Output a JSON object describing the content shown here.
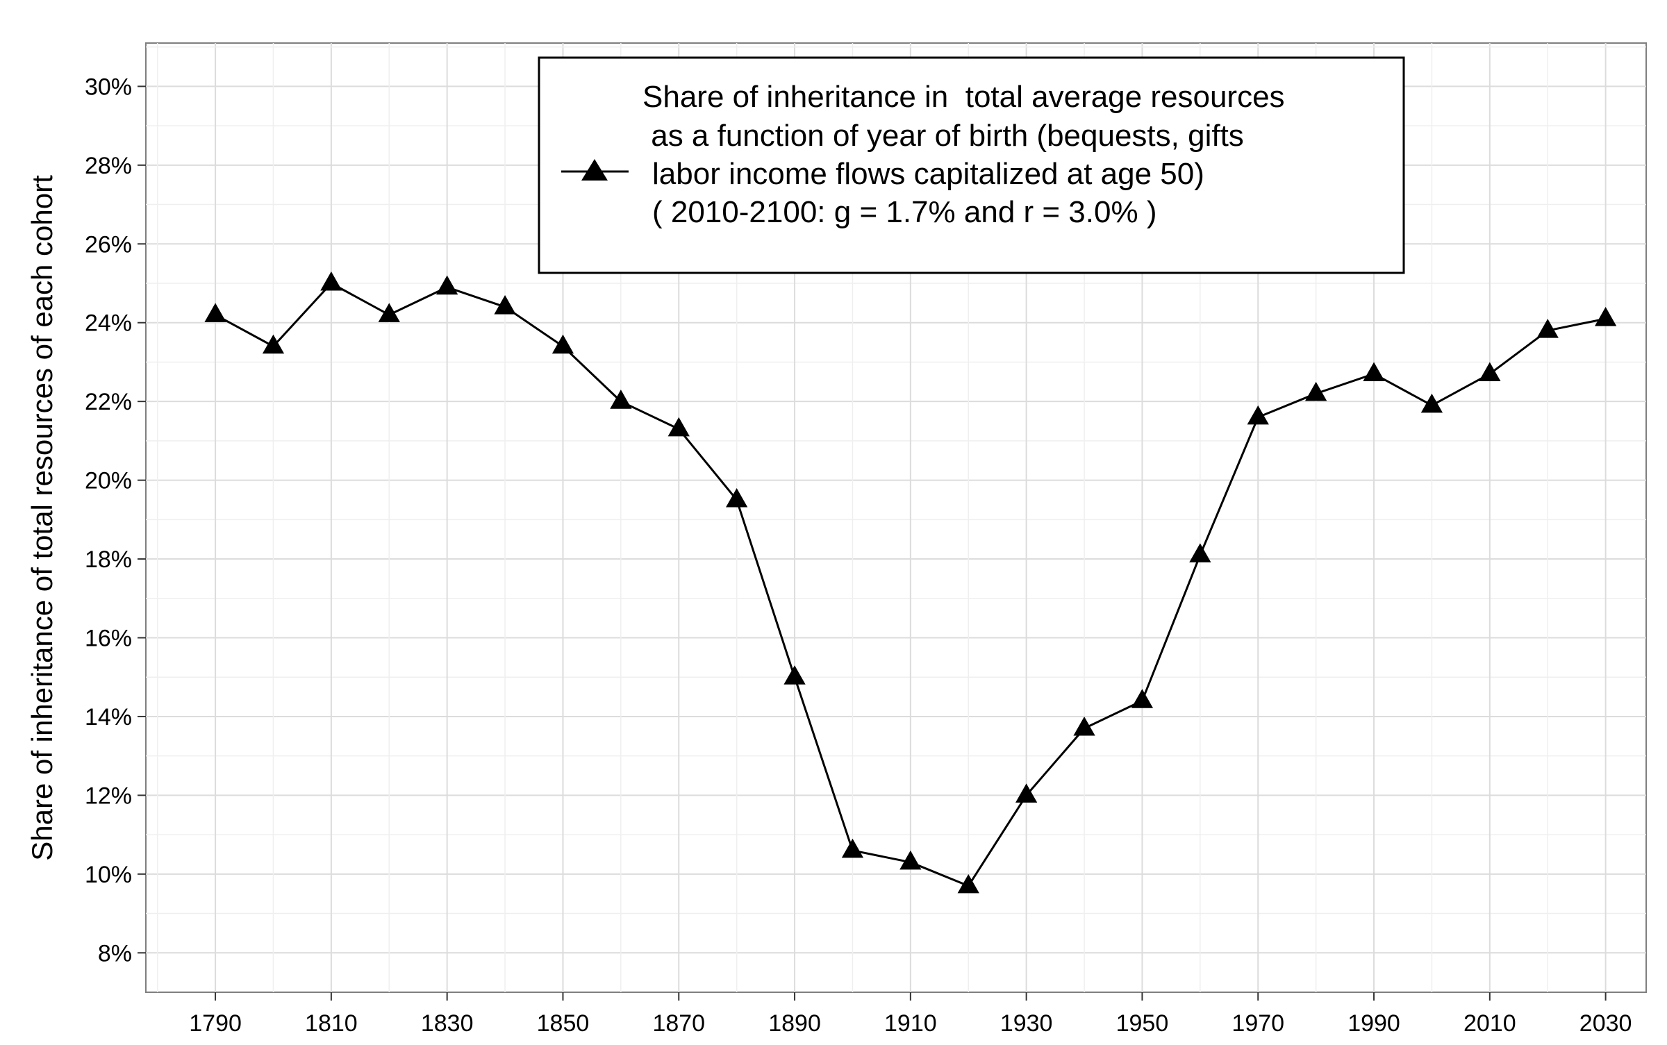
{
  "chart_data": {
    "type": "line",
    "title": "",
    "xlabel": "",
    "ylabel": "Share of inheritance of total resources of each cohort",
    "x": [
      1790,
      1800,
      1810,
      1820,
      1830,
      1840,
      1850,
      1860,
      1870,
      1880,
      1890,
      1900,
      1910,
      1920,
      1930,
      1940,
      1950,
      1960,
      1970,
      1980,
      1990,
      2000,
      2010,
      2020,
      2030
    ],
    "series": [
      {
        "name": "Share of inheritance in  total average resources as a function of year of birth (bequests, gifts labor income flows capitalized at age 50) ( 2010-2100: g = 1.7% and r = 3.0% )",
        "values": [
          24.2,
          23.4,
          25.0,
          24.2,
          24.9,
          24.4,
          23.4,
          22.0,
          21.3,
          19.5,
          15.0,
          10.6,
          10.3,
          9.7,
          12.0,
          13.7,
          14.4,
          18.1,
          21.6,
          22.2,
          22.7,
          21.9,
          22.7,
          23.8,
          24.1
        ]
      }
    ],
    "xlim": [
      1778,
      2037
    ],
    "ylim": [
      7.0,
      31.1
    ],
    "xticks": [
      "1790",
      "1810",
      "1830",
      "1850",
      "1870",
      "1890",
      "1910",
      "1930",
      "1950",
      "1970",
      "1990",
      "2010",
      "2030"
    ],
    "yticks": [
      "8%",
      "10%",
      "12%",
      "14%",
      "16%",
      "18%",
      "20%",
      "22%",
      "24%",
      "26%",
      "28%",
      "30%"
    ],
    "legend": {
      "position": "top-center",
      "lines": [
        "Share of inheritance in  total average resources",
        " as a function of year of birth (bequests, gifts",
        "labor income flows capitalized at age 50)",
        "( 2010-2100: g = 1.7% and r = 3.0% )"
      ]
    },
    "grid": true,
    "marker": "triangle",
    "line_color": "#000000",
    "grid_color": "#e4e4e4",
    "panel_border_color": "#7f7f7f"
  }
}
